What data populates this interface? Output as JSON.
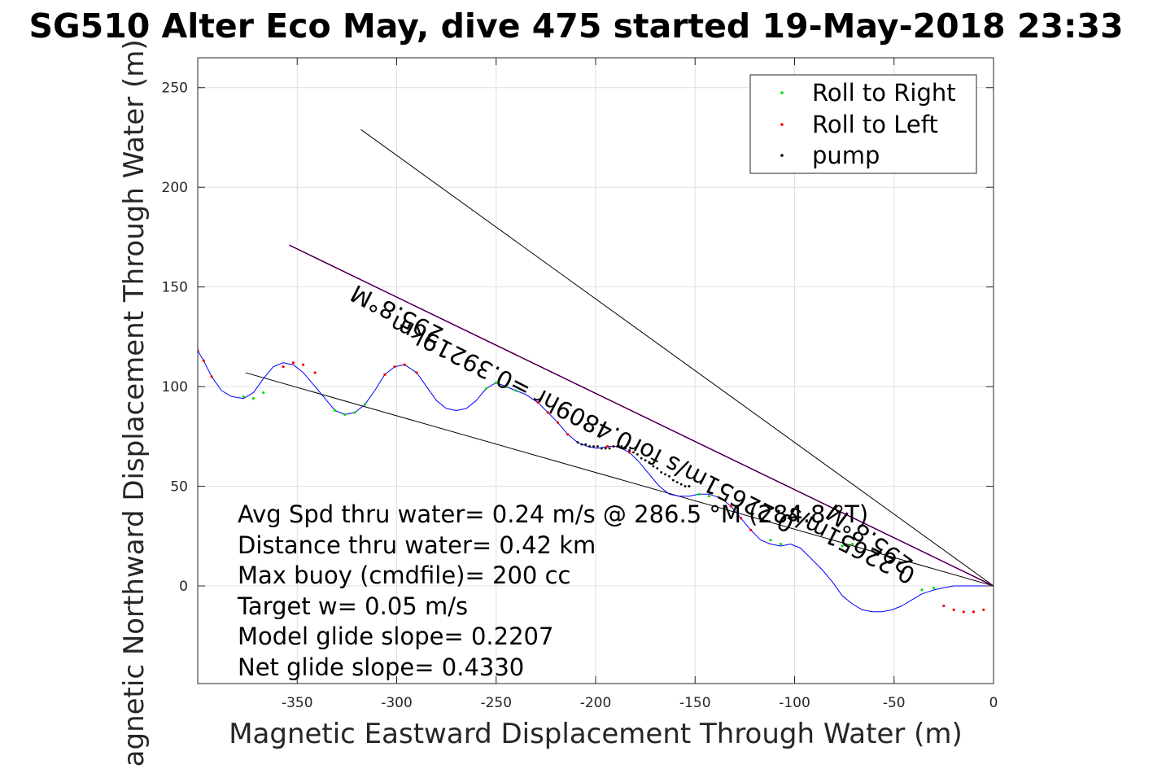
{
  "chart_data": {
    "type": "line",
    "title": "SG510 Alter Eco May, dive 475 started 19-May-2018 23:33",
    "xlabel": "Magnetic Eastward Displacement Through Water (m)",
    "ylabel": "Magnetic Northward Displacement Through Water (m)",
    "xlim": [
      -400,
      0
    ],
    "ylim": [
      -49,
      265
    ],
    "xticks": [
      -350,
      -300,
      -250,
      -200,
      -150,
      -100,
      -50,
      0
    ],
    "yticks": [
      0,
      50,
      100,
      150,
      200,
      250
    ],
    "grid": true,
    "legend_position": "top-right",
    "legend": [
      {
        "label": "Roll to Right",
        "color": "#00e000"
      },
      {
        "label": "Roll to Left",
        "color": "#ff0000"
      },
      {
        "label": "pump",
        "color": "#000000"
      }
    ],
    "track": {
      "name": "",
      "color": "#0000ff",
      "x": [
        -400,
        -397,
        -393,
        -388,
        -383,
        -377,
        -372,
        -367,
        -362,
        -357,
        -352,
        -347,
        -341,
        -336,
        -331,
        -326,
        -321,
        -316,
        -311,
        -306,
        -301,
        -296,
        -290,
        -285,
        -280,
        -275,
        -270,
        -265,
        -260,
        -255,
        -250,
        -245,
        -240,
        -235,
        -229,
        -224,
        -219,
        -214,
        -209,
        -204,
        -199,
        -194,
        -189,
        -183,
        -178,
        -173,
        -168,
        -163,
        -158,
        -153,
        -148,
        -143,
        -137,
        -132,
        -127,
        -122,
        -117,
        -112,
        -107,
        -102,
        -97,
        -92,
        -86,
        -81,
        -76,
        -71,
        -66,
        -61,
        -56,
        -51,
        -46,
        -41,
        -36,
        -30,
        -25,
        -20,
        -15,
        -10,
        -5,
        -2,
        0
      ],
      "y": [
        118,
        113,
        105,
        98,
        95,
        94,
        97,
        104,
        110,
        112,
        111,
        107,
        100,
        94,
        88,
        86,
        87,
        91,
        98,
        106,
        110,
        111,
        107,
        100,
        93,
        89,
        88,
        89,
        93,
        99,
        102,
        100,
        98,
        96,
        92,
        87,
        82,
        76,
        72,
        70,
        69,
        70,
        70,
        67,
        62,
        56,
        50,
        46,
        45,
        45,
        46,
        46,
        44,
        40,
        34,
        28,
        23,
        21,
        20,
        21,
        19,
        14,
        8,
        2,
        -5,
        -9,
        -12,
        -13,
        -13,
        -12,
        -10,
        -7,
        -4,
        -2,
        -1,
        0,
        0,
        0,
        0,
        0,
        0
      ]
    },
    "roll_right_points": {
      "x": [
        -377,
        -372,
        -367,
        -331,
        -326,
        -321,
        -316,
        -255,
        -250,
        -245,
        -240,
        -153,
        -148,
        -143,
        -112,
        -107,
        -76,
        -71,
        -36,
        -30
      ],
      "y": [
        95,
        94,
        97,
        88,
        86,
        87,
        91,
        99,
        102,
        100,
        98,
        50,
        46,
        45,
        23,
        21,
        20,
        21,
        -2,
        -1
      ]
    },
    "roll_left_points": {
      "x": [
        -400,
        -397,
        -393,
        -357,
        -352,
        -347,
        -341,
        -306,
        -301,
        -296,
        -290,
        -229,
        -224,
        -219,
        -214,
        -194,
        -189,
        -183,
        -132,
        -127,
        -122,
        -25,
        -20,
        -15,
        -10,
        -5
      ],
      "y": [
        118,
        113,
        105,
        110,
        112,
        111,
        107,
        106,
        110,
        111,
        107,
        92,
        87,
        82,
        76,
        70,
        70,
        67,
        40,
        34,
        28,
        -10,
        -12,
        -13,
        -13,
        -12
      ]
    },
    "pump_points": {
      "x": [
        -209,
        -207,
        -205,
        -203,
        -201,
        -199,
        -197,
        -195,
        -193,
        -191,
        -189,
        -187,
        -185,
        -183,
        -181,
        -179,
        -177,
        -175,
        -173,
        -171,
        -169,
        -167,
        -165,
        -163,
        -161,
        -159,
        -157,
        -155,
        -153
      ],
      "y": [
        72,
        71,
        71,
        70,
        70,
        70,
        69,
        69,
        69,
        70,
        70,
        70,
        69,
        68,
        67,
        66,
        64,
        63,
        62,
        60,
        59,
        57,
        56,
        55,
        53,
        52,
        51,
        50,
        50
      ]
    },
    "reference_lines": [
      {
        "name": "",
        "color": "#000000",
        "x": [
          -318,
          0
        ],
        "y": [
          229,
          0
        ]
      },
      {
        "name": "",
        "color": "#000000",
        "x": [
          -376,
          0
        ],
        "y": [
          107,
          0
        ]
      },
      {
        "name": "",
        "color": "#ff00ff",
        "x": [
          -354,
          0
        ],
        "y": [
          171,
          0
        ]
      },
      {
        "name": "",
        "color": "#000000",
        "x": [
          -354,
          0
        ],
        "y": [
          171,
          0
        ]
      }
    ],
    "rotated_annotations": [
      {
        "text": "295.8°M",
        "x": -298,
        "y": 140,
        "angle": 207
      },
      {
        "text": "0.22651m/s for0.4809hr =0.39219km",
        "x": -200,
        "y": 85,
        "angle": 207
      },
      {
        "text": "295.8°M",
        "x": -60,
        "y": 27,
        "angle": 216
      },
      {
        "text": "0.22651m/s",
        "x": -70,
        "y": 24,
        "angle": 207
      }
    ],
    "annotations": [
      "Avg Spd thru water=  0.24 m/s @ 286.5  °M (284.8 °T)",
      "Distance thru water=  0.42 km",
      "Max buoy (cmdfile)= 200 cc",
      "Target w= 0.05 m/s",
      "Model glide slope= 0.2207",
      "Net glide slope= 0.4330"
    ]
  }
}
